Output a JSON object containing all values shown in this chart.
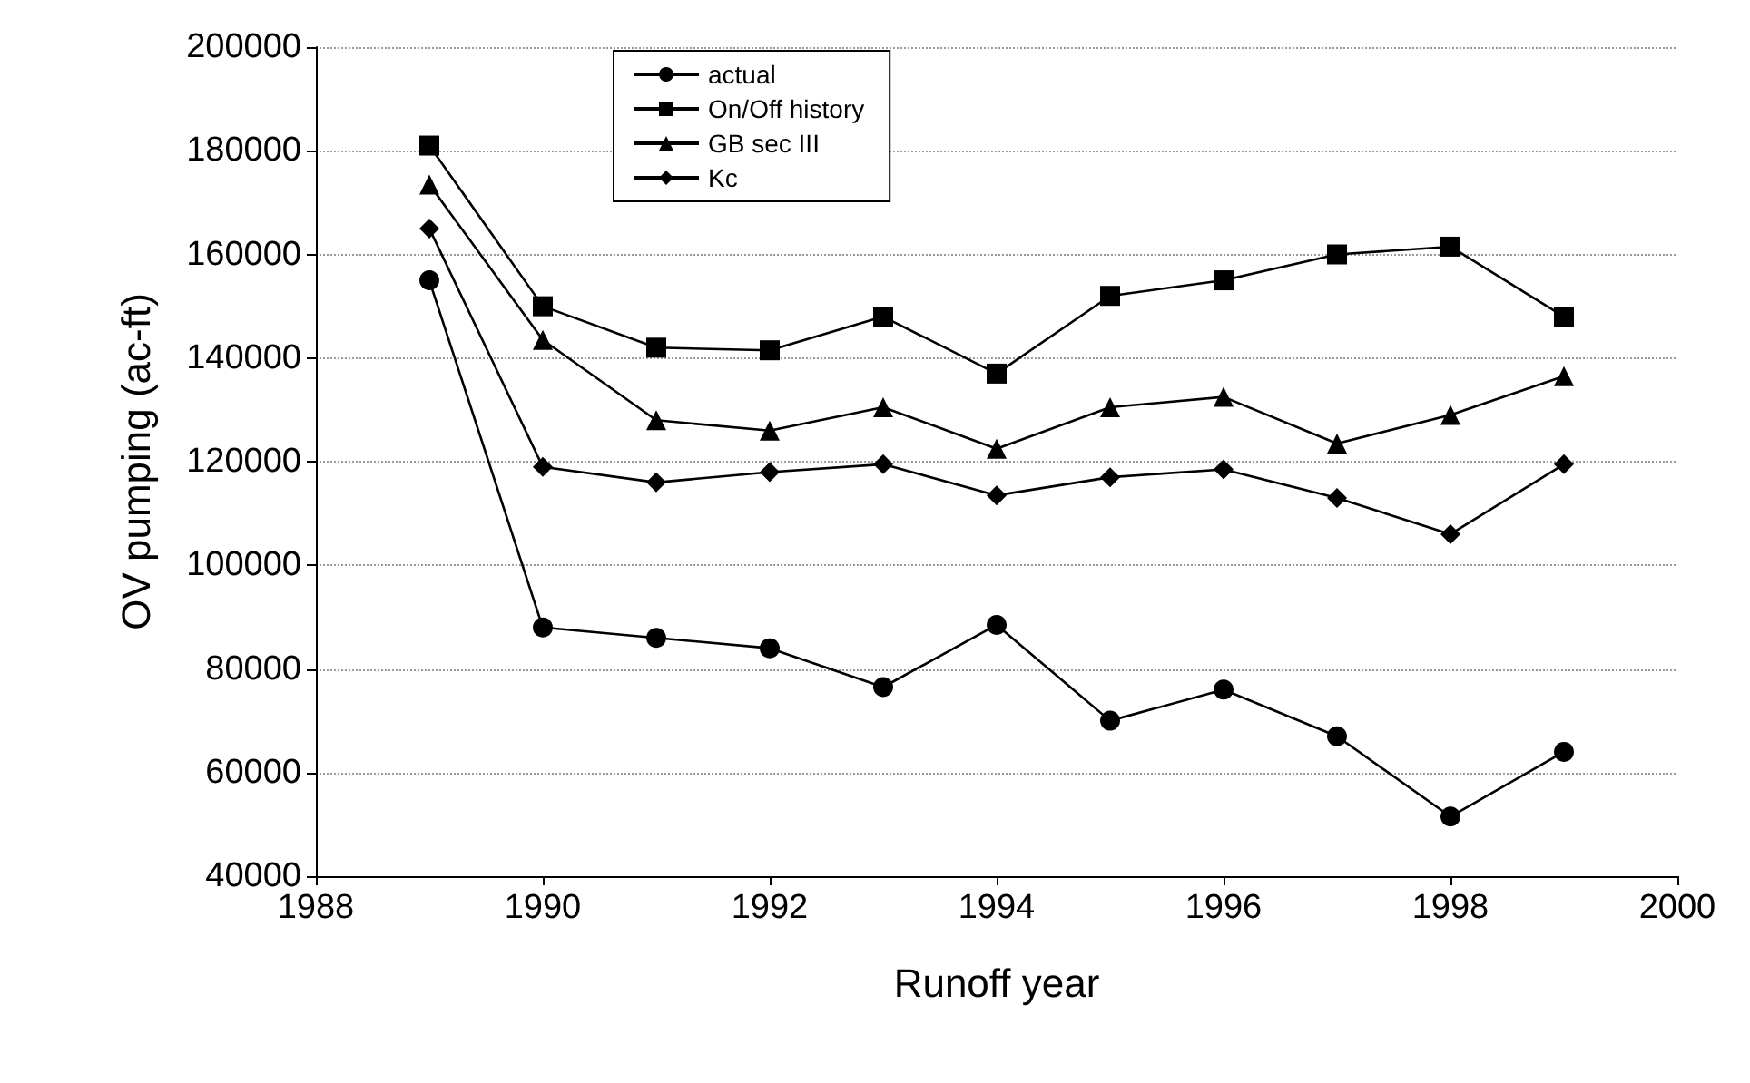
{
  "chart_data": {
    "type": "line",
    "xlabel": "Runoff year",
    "ylabel": "OV pumping (ac-ft)",
    "x": [
      1989,
      1990,
      1991,
      1992,
      1993,
      1994,
      1995,
      1996,
      1997,
      1998,
      1999
    ],
    "xlim": [
      1988,
      2000
    ],
    "xticks": [
      1988,
      1990,
      1992,
      1994,
      1996,
      1998,
      2000
    ],
    "ylim": [
      40000,
      200000
    ],
    "yticks": [
      40000,
      60000,
      80000,
      100000,
      120000,
      140000,
      160000,
      180000,
      200000
    ],
    "grid": "y",
    "legend": "top left",
    "line_style": "solid",
    "series": [
      {
        "name": "actual",
        "color": "#000000",
        "marker": "circle",
        "values": [
          155000,
          88000,
          86000,
          84000,
          76500,
          88500,
          70000,
          76000,
          67000,
          51500,
          64000
        ]
      },
      {
        "name": "On/Off history",
        "color": "#000000",
        "marker": "square",
        "values": [
          181000,
          150000,
          142000,
          141500,
          148000,
          137000,
          152000,
          155000,
          160000,
          161500,
          148000
        ]
      },
      {
        "name": "GB sec III",
        "color": "#000000",
        "marker": "triangle",
        "values": [
          173500,
          143500,
          128000,
          126000,
          130500,
          122500,
          130500,
          132500,
          123500,
          129000,
          136500
        ]
      },
      {
        "name": "Kc",
        "color": "#000000",
        "marker": "diamond",
        "values": [
          165000,
          119000,
          116000,
          118000,
          119500,
          113500,
          117000,
          118500,
          113000,
          106000,
          119500
        ]
      }
    ]
  }
}
